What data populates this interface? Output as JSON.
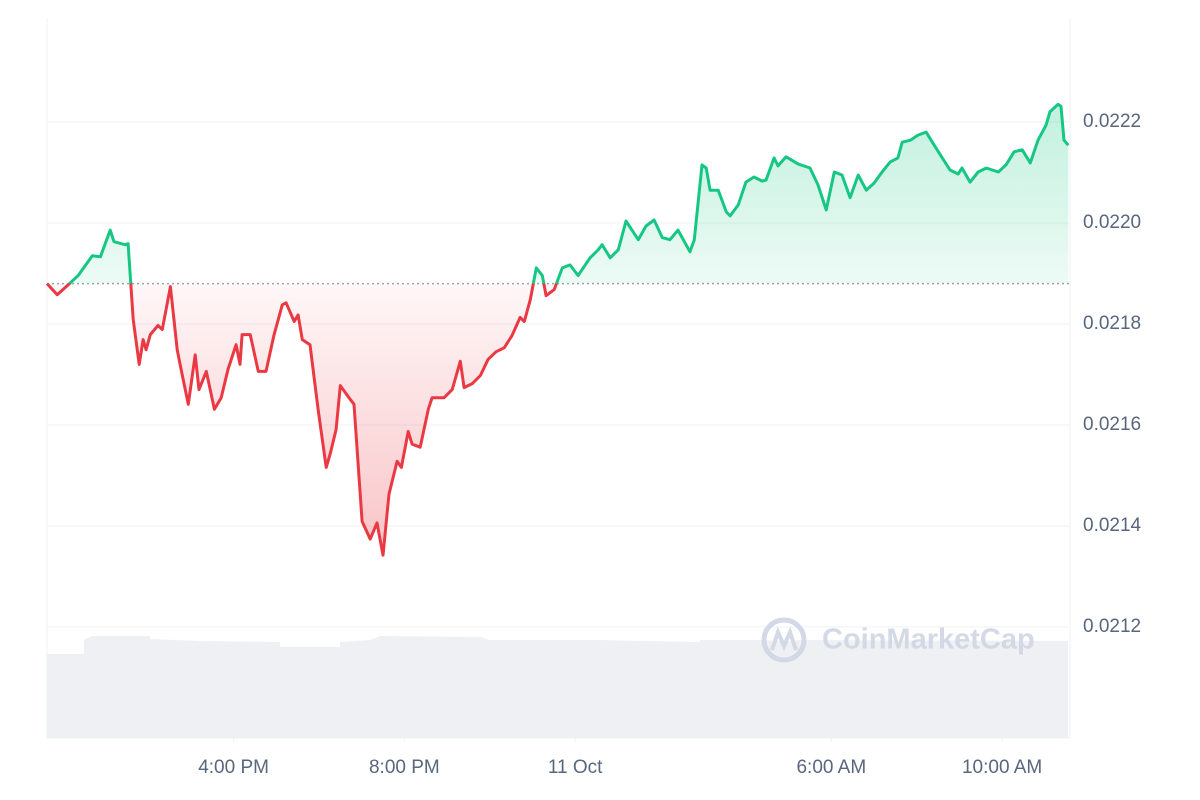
{
  "chart_data": {
    "type": "line",
    "watermark": "CoinMarketCap",
    "x": [
      11.63,
      11.87,
      12.08,
      12.36,
      12.69,
      12.88,
      13.11,
      13.2,
      13.46,
      13.53,
      13.65,
      13.79,
      13.88,
      13.95,
      14.05,
      14.23,
      14.33,
      14.52,
      14.68,
      14.77,
      14.94,
      15.1,
      15.19,
      15.36,
      15.55,
      15.71,
      15.87,
      16.06,
      16.15,
      16.2,
      16.39,
      16.58,
      16.76,
      16.95,
      17.14,
      17.23,
      17.42,
      17.51,
      17.61,
      17.79,
      17.98,
      18.17,
      18.26,
      18.4,
      18.5,
      18.73,
      18.82,
      19.01,
      19.2,
      19.36,
      19.5,
      19.64,
      19.83,
      19.93,
      20.09,
      20.18,
      20.37,
      20.56,
      20.65,
      20.93,
      21.12,
      21.31,
      21.4,
      21.59,
      21.78,
      21.96,
      22.15,
      22.34,
      22.52,
      22.71,
      22.81,
      22.95,
      23.09,
      23.23,
      23.32,
      23.51,
      23.7,
      23.88,
      24.07,
      24.35,
      24.54,
      24.63,
      24.82,
      25.01,
      25.19,
      25.48,
      25.66,
      25.85,
      26.04,
      26.22,
      26.41,
      26.69,
      26.79,
      26.97,
      27.07,
      27.16,
      27.35,
      27.54,
      27.63,
      27.82,
      28.0,
      28.19,
      28.38,
      28.47,
      28.66,
      28.75,
      28.94,
      29.22,
      29.5,
      29.69,
      29.88,
      30.07,
      30.25,
      30.44,
      30.63,
      30.82,
      31.0,
      31.19,
      31.38,
      31.56,
      31.66,
      31.85,
      32.03,
      32.22,
      32.41,
      32.6,
      32.78,
      32.97,
      33.06,
      33.25,
      33.44,
      33.63,
      33.91,
      34.09,
      34.28,
      34.47,
      34.66,
      34.84,
      35.03,
      35.12,
      35.31,
      35.38,
      35.45,
      35.55
    ],
    "values": [
      0.02188,
      0.021858,
      0.021874,
      0.021896,
      0.021935,
      0.021933,
      0.021986,
      0.021963,
      0.021957,
      0.021959,
      0.021809,
      0.02172,
      0.021769,
      0.021749,
      0.021779,
      0.021797,
      0.021789,
      0.021874,
      0.021749,
      0.02171,
      0.021641,
      0.021739,
      0.02167,
      0.021706,
      0.021631,
      0.021654,
      0.02171,
      0.021759,
      0.02172,
      0.021779,
      0.021779,
      0.021706,
      0.021706,
      0.021779,
      0.021838,
      0.021842,
      0.021805,
      0.021818,
      0.021769,
      0.021759,
      0.021631,
      0.021516,
      0.021542,
      0.021591,
      0.021678,
      0.021651,
      0.021641,
      0.021409,
      0.021374,
      0.021406,
      0.021342,
      0.021463,
      0.021528,
      0.021516,
      0.021587,
      0.021562,
      0.021556,
      0.021631,
      0.021654,
      0.021654,
      0.02167,
      0.021726,
      0.021674,
      0.021682,
      0.021698,
      0.02173,
      0.021745,
      0.021753,
      0.021777,
      0.021813,
      0.021805,
      0.021848,
      0.021911,
      0.021896,
      0.021856,
      0.021868,
      0.021911,
      0.021917,
      0.021896,
      0.021931,
      0.021947,
      0.021957,
      0.021931,
      0.021947,
      0.022004,
      0.021967,
      0.021994,
      0.022006,
      0.021971,
      0.021967,
      0.021986,
      0.021943,
      0.021967,
      0.022115,
      0.022109,
      0.022065,
      0.022065,
      0.022022,
      0.022014,
      0.022036,
      0.022081,
      0.022091,
      0.022083,
      0.022085,
      0.022129,
      0.022113,
      0.022131,
      0.022117,
      0.022109,
      0.022075,
      0.022026,
      0.022101,
      0.022095,
      0.02205,
      0.022095,
      0.022065,
      0.022079,
      0.022101,
      0.022121,
      0.022129,
      0.02216,
      0.022164,
      0.022174,
      0.02218,
      0.022154,
      0.022129,
      0.022105,
      0.022097,
      0.022109,
      0.022081,
      0.022101,
      0.022109,
      0.022101,
      0.022115,
      0.022141,
      0.022145,
      0.022119,
      0.022164,
      0.022194,
      0.02222,
      0.022235,
      0.022231,
      0.022164,
      0.022154
    ],
    "baseline": 0.02188,
    "up_color": "#16c784",
    "down_color": "#ea3943",
    "xlim": [
      11.63,
      35.59
    ],
    "xticks": [
      {
        "value": 16,
        "label": "4:00 PM"
      },
      {
        "value": 20,
        "label": "8:00 PM"
      },
      {
        "value": 24,
        "label": "11 Oct"
      },
      {
        "value": 30,
        "label": "6:00 AM"
      },
      {
        "value": 34,
        "label": "10:00 AM"
      }
    ],
    "ylim": [
      0.02098,
      0.022406
    ],
    "yticks": [
      0.0212,
      0.0214,
      0.0216,
      0.0218,
      {
        "value": 0.022,
        "label": "0.0220"
      },
      0.0222
    ],
    "grid": true
  }
}
